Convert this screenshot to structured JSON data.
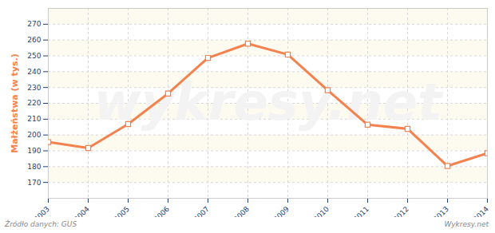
{
  "chart_data": {
    "type": "line",
    "y_label": "Małżeństwa (w tys.)",
    "x": [
      2003,
      2004,
      2005,
      2006,
      2007,
      2008,
      2009,
      2010,
      2011,
      2012,
      2013,
      2014
    ],
    "values": [
      195.5,
      191.8,
      206.9,
      226.2,
      248.7,
      257.7,
      250.8,
      228.3,
      206.5,
      203.9,
      180.4,
      188.5
    ],
    "color": "#f4824e",
    "marker": "square",
    "xlim": [
      2003,
      2014
    ],
    "xticks": [
      2003,
      2004,
      2005,
      2006,
      2007,
      2008,
      2009,
      2010,
      2011,
      2012,
      2013,
      2014
    ],
    "ylim": [
      160,
      280
    ],
    "yticks": [
      170,
      180,
      190,
      200,
      210,
      220,
      230,
      240,
      250,
      260,
      270
    ],
    "grid": true,
    "source": "Źródło danych: GUS",
    "credit": "Wykresy.net",
    "watermark": "wykresy.net"
  }
}
